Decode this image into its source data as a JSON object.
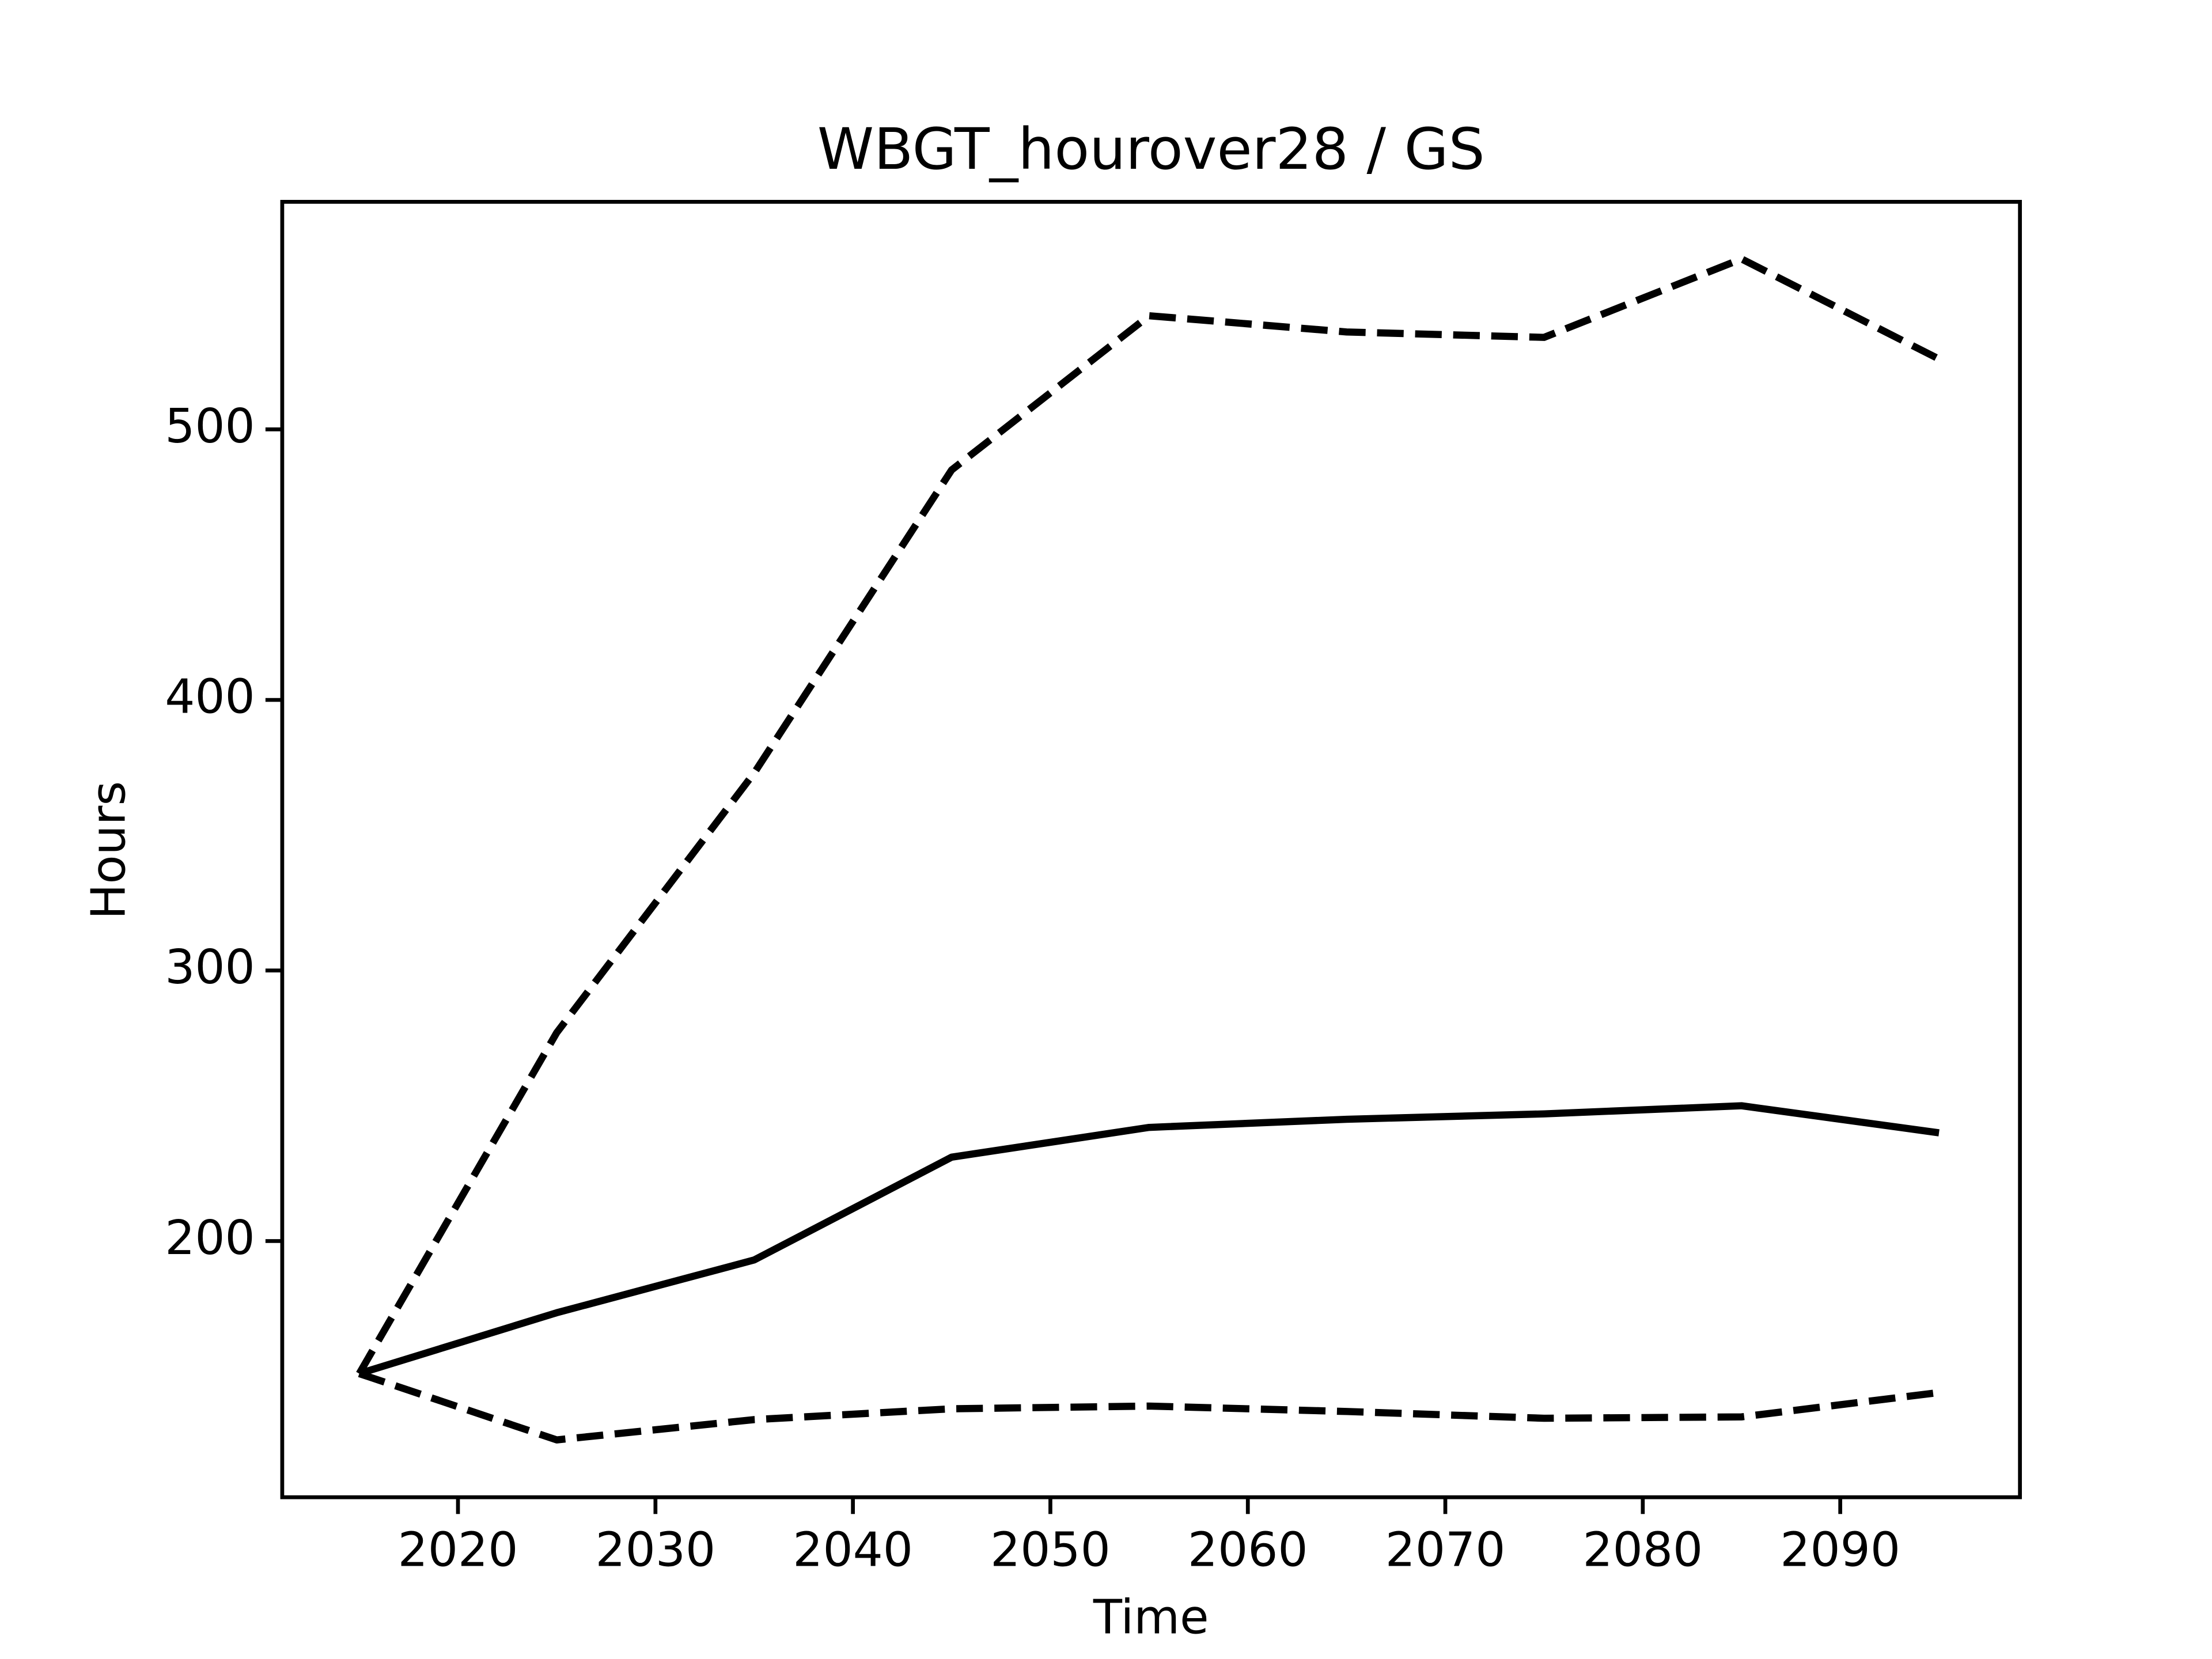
{
  "chart_data": {
    "type": "line",
    "title": "WBGT_hourover28 / GS",
    "xlabel": "Time",
    "ylabel": "Hours",
    "x": [
      2015,
      2025,
      2035,
      2045,
      2055,
      2065,
      2075,
      2085,
      2095
    ],
    "series": [
      {
        "color": "#000000",
        "dashed": true,
        "values": [
          151,
          277,
          373,
          485,
          542,
          536,
          534,
          563,
          526
        ]
      },
      {
        "color": "#000000",
        "dashed": false,
        "values": [
          151,
          173.5,
          193,
          231,
          242,
          245,
          247,
          250,
          240
        ]
      },
      {
        "color": "#000000",
        "dashed": true,
        "values": [
          151,
          126.5,
          134,
          138,
          139,
          137,
          134.5,
          135,
          144
        ]
      }
    ],
    "xlim": [
      2011.1,
      2099.1
    ],
    "xticks": [
      2020,
      2030,
      2040,
      2050,
      2060,
      2070,
      2080,
      2090
    ],
    "ylim": [
      105.3,
      584.1
    ],
    "yticks": [
      200,
      300,
      400,
      500
    ],
    "grid": false
  }
}
